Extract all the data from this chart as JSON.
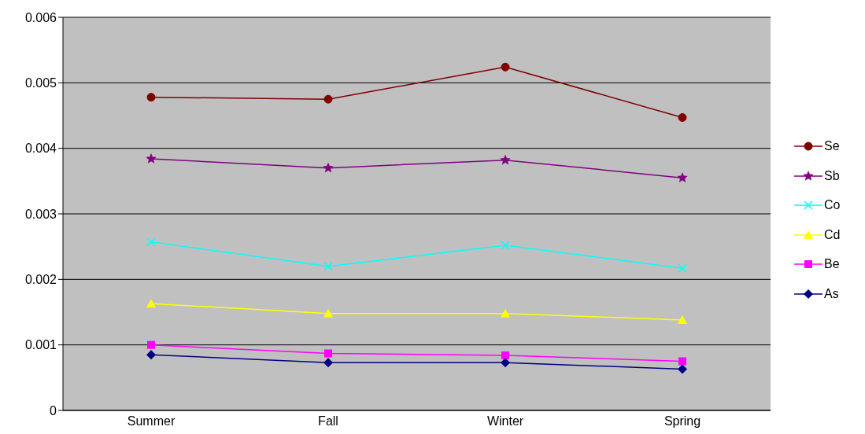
{
  "chart_data": {
    "type": "line",
    "categories": [
      "Summer",
      "Fall",
      "Winter",
      "Spring"
    ],
    "series": [
      {
        "name": "Se",
        "color": "#800000",
        "marker": "circle",
        "values": [
          0.00478,
          0.00475,
          0.00524,
          0.00447
        ]
      },
      {
        "name": "Sb",
        "color": "#800080",
        "marker": "star",
        "values": [
          0.00384,
          0.0037,
          0.00382,
          0.00355
        ]
      },
      {
        "name": "Co",
        "color": "#00ffff",
        "marker": "cross",
        "values": [
          0.00257,
          0.0022,
          0.00252,
          0.00217
        ]
      },
      {
        "name": "Cd",
        "color": "#ffff00",
        "marker": "triangle",
        "values": [
          0.00163,
          0.00148,
          0.00148,
          0.00138
        ]
      },
      {
        "name": "Be",
        "color": "#ff00ff",
        "marker": "square",
        "values": [
          0.001,
          0.00087,
          0.00084,
          0.00075
        ]
      },
      {
        "name": "As",
        "color": "#000080",
        "marker": "diamond",
        "values": [
          0.00085,
          0.00073,
          0.00073,
          0.00063
        ]
      }
    ],
    "ylim": [
      0,
      0.006
    ],
    "yticks": [
      0,
      0.001,
      0.002,
      0.003,
      0.004,
      0.005,
      0.006
    ],
    "grid": "y",
    "legend": "right"
  }
}
